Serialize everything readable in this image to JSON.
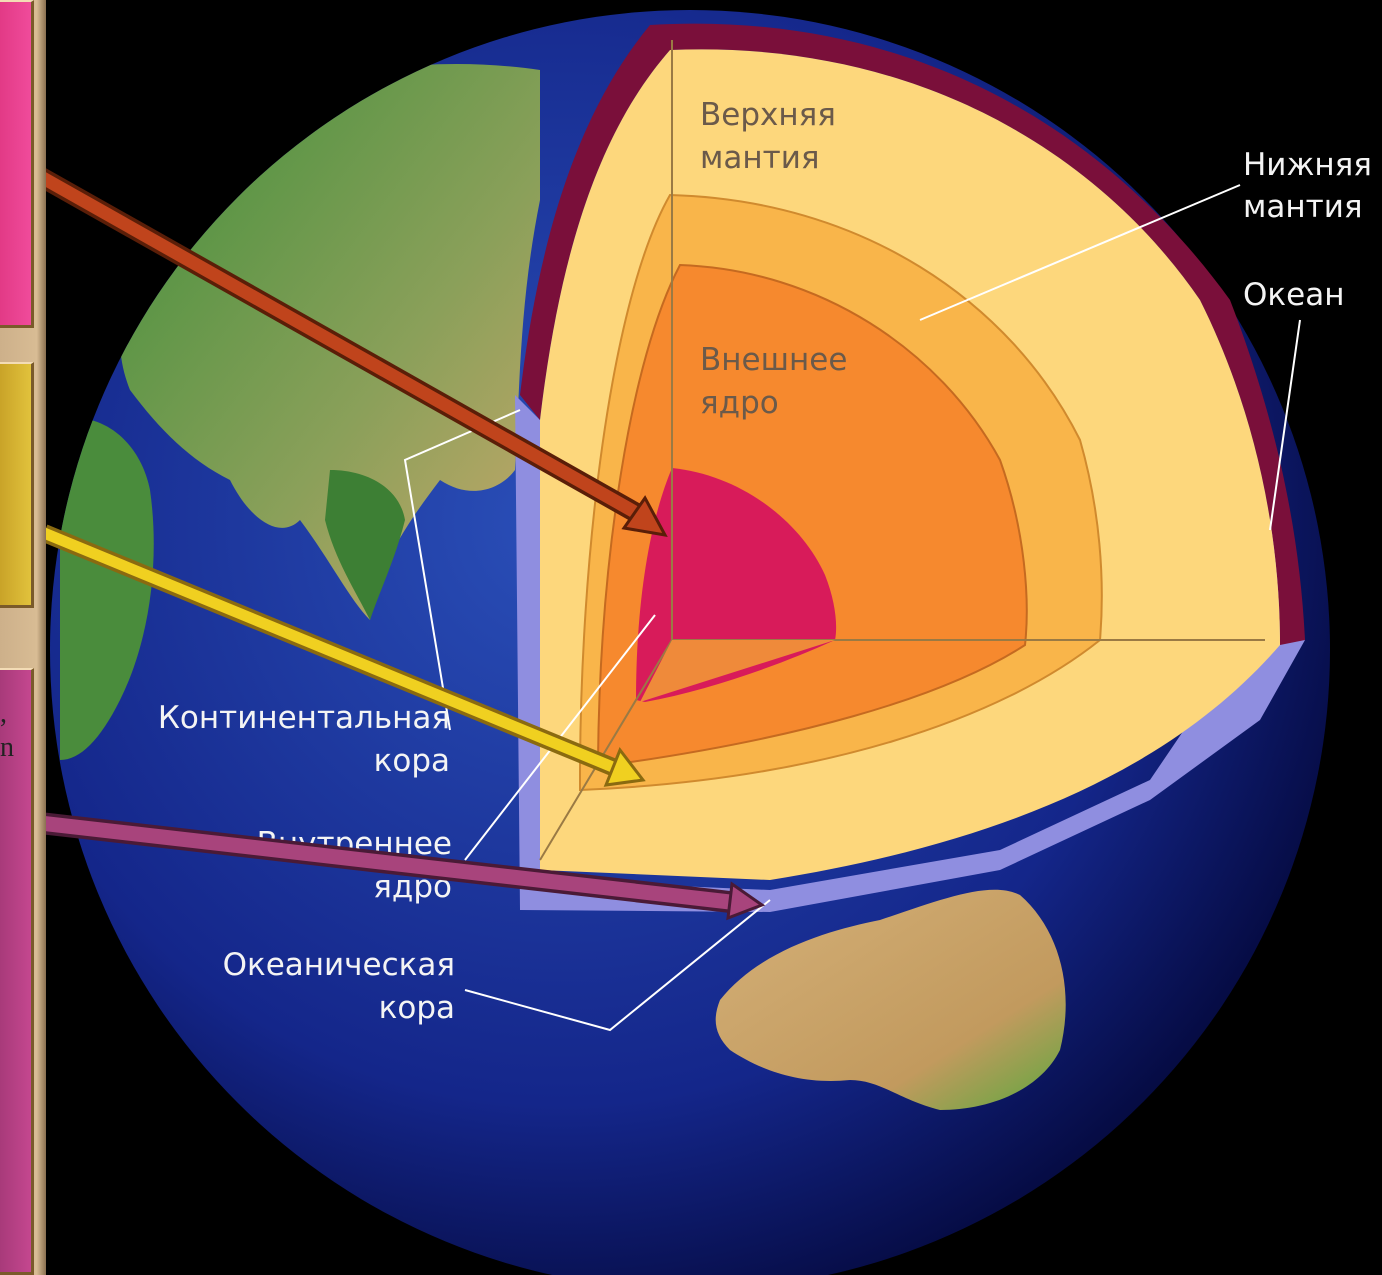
{
  "side_panels": [
    {
      "id": "pink",
      "color": "#e23a86",
      "glyph": ""
    },
    {
      "id": "yellow",
      "color": "#d8b634",
      "glyph": ""
    },
    {
      "id": "magenta",
      "color": "#b84385",
      "glyph": ",\nn"
    }
  ],
  "labels": {
    "upper_mantle": [
      "Верхняя",
      "мантия"
    ],
    "lower_mantle": [
      "Нижняя",
      "мантия"
    ],
    "ocean": "Океан",
    "outer_core": [
      "Внешнее",
      "ядро"
    ],
    "continental_crust": [
      "Континентальная",
      "кора"
    ],
    "inner_core": [
      "Внутреннее",
      "ядро"
    ],
    "oceanic_crust": [
      "Океаническая",
      "кора"
    ]
  },
  "arrows": [
    {
      "name": "arrow-to-inner-core",
      "color": "#c0441c"
    },
    {
      "name": "arrow-to-outer-core",
      "color": "#f0d020"
    },
    {
      "name": "arrow-to-oceanic-crust",
      "color": "#a8447c"
    }
  ]
}
